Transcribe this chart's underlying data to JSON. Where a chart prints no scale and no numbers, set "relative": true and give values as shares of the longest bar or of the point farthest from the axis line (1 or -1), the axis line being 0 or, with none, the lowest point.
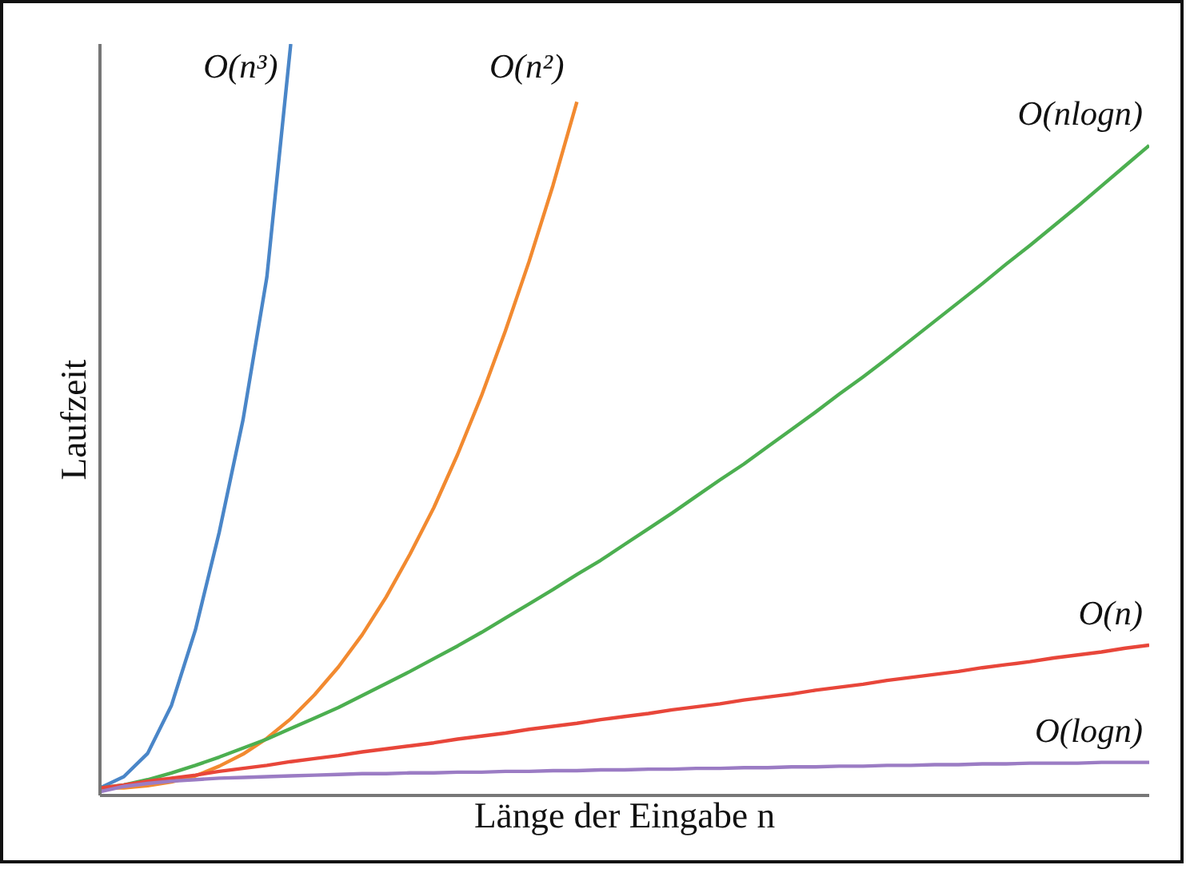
{
  "chart_data": {
    "type": "line",
    "relative": true,
    "xlabel": "Länge der Eingabe n",
    "ylabel": "Laufzeit",
    "legend": false,
    "line_style": "solid",
    "categories": [
      null,
      null,
      null,
      null,
      null,
      null,
      null,
      null,
      null,
      null,
      null,
      null,
      null,
      null,
      null,
      null,
      null,
      null,
      null,
      null,
      null,
      null,
      null,
      null,
      null,
      null,
      null,
      null,
      null,
      null,
      null,
      null,
      null,
      null,
      null,
      null,
      null,
      null,
      null,
      null,
      null,
      null,
      null,
      null,
      null
    ],
    "series": [
      {
        "name": "O(n³)",
        "color": "#4a86c8",
        "values": [
          0.01,
          0.025,
          0.056,
          0.12,
          0.22,
          0.35,
          0.5,
          0.69,
          1.0,
          null,
          null,
          null,
          null,
          null,
          null,
          null,
          null,
          null,
          null,
          null,
          null,
          null,
          null,
          null,
          null,
          null,
          null,
          null,
          null,
          null,
          null,
          null,
          null,
          null,
          null,
          null,
          null,
          null,
          null,
          null,
          null,
          null,
          null,
          null,
          null
        ]
      },
      {
        "name": "O(n²)",
        "color": "#f28a30",
        "values": [
          0.01,
          0.01,
          0.013,
          0.018,
          0.026,
          0.039,
          0.055,
          0.076,
          0.102,
          0.134,
          0.171,
          0.214,
          0.264,
          0.321,
          0.383,
          0.454,
          0.532,
          0.618,
          0.711,
          0.812,
          0.923,
          null,
          null,
          null,
          null,
          null,
          null,
          null,
          null,
          null,
          null,
          null,
          null,
          null,
          null,
          null,
          null,
          null,
          null,
          null,
          null,
          null,
          null,
          null,
          null
        ]
      },
      {
        "name": "O(nlogn)",
        "color": "#4caf50",
        "values": [
          0.01,
          0.014,
          0.021,
          0.03,
          0.04,
          0.051,
          0.063,
          0.075,
          0.089,
          0.103,
          0.117,
          0.133,
          0.149,
          0.165,
          0.182,
          0.199,
          0.217,
          0.236,
          0.255,
          0.274,
          0.294,
          0.313,
          0.334,
          0.355,
          0.376,
          0.398,
          0.42,
          0.441,
          0.464,
          0.487,
          0.51,
          0.534,
          0.557,
          0.581,
          0.606,
          0.631,
          0.656,
          0.681,
          0.707,
          0.732,
          0.758,
          0.784,
          0.811,
          0.838,
          0.865
        ]
      },
      {
        "name": "O(n)",
        "color": "#e8463a",
        "values": [
          0.01,
          0.014,
          0.019,
          0.023,
          0.027,
          0.032,
          0.036,
          0.04,
          0.045,
          0.049,
          0.053,
          0.058,
          0.062,
          0.066,
          0.07,
          0.075,
          0.079,
          0.083,
          0.088,
          0.092,
          0.096,
          0.101,
          0.105,
          0.109,
          0.114,
          0.118,
          0.122,
          0.127,
          0.131,
          0.135,
          0.14,
          0.144,
          0.148,
          0.153,
          0.157,
          0.161,
          0.165,
          0.17,
          0.174,
          0.178,
          0.183,
          0.187,
          0.191,
          0.196,
          0.2
        ]
      },
      {
        "name": "O(logn)",
        "color": "#9b7cc4",
        "values": [
          0.005,
          0.012,
          0.016,
          0.019,
          0.021,
          0.023,
          0.024,
          0.025,
          0.026,
          0.027,
          0.028,
          0.029,
          0.029,
          0.03,
          0.03,
          0.031,
          0.031,
          0.032,
          0.032,
          0.033,
          0.033,
          0.034,
          0.034,
          0.035,
          0.035,
          0.036,
          0.036,
          0.037,
          0.037,
          0.038,
          0.038,
          0.039,
          0.039,
          0.04,
          0.04,
          0.041,
          0.041,
          0.042,
          0.042,
          0.043,
          0.043,
          0.043,
          0.044,
          0.044,
          0.044
        ]
      }
    ]
  }
}
